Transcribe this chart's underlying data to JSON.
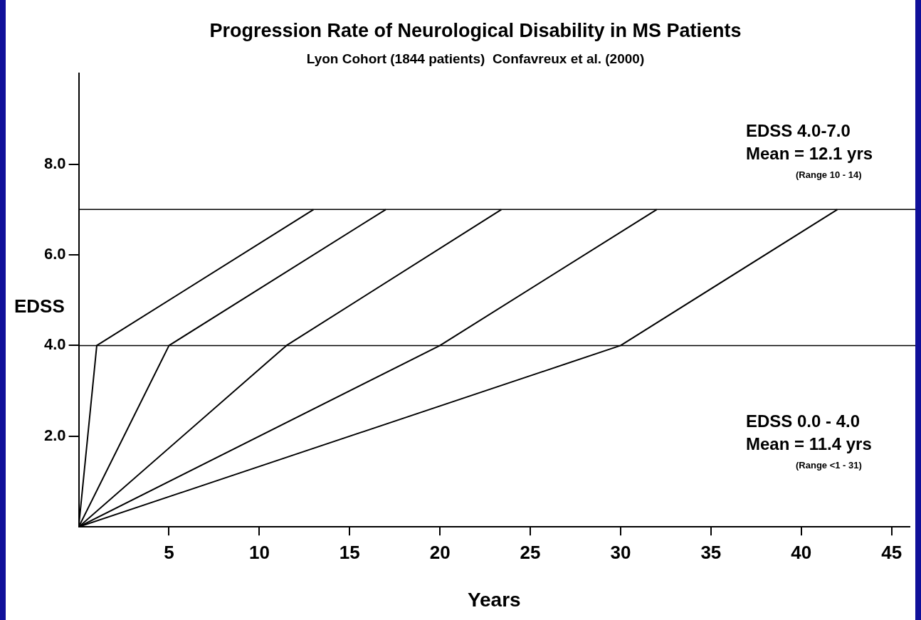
{
  "chart_data": {
    "type": "line",
    "title": "Progression Rate of Neurological Disability in MS Patients",
    "subtitle": "Lyon Cohort (1844 patients)  Confavreux et al. (2000)",
    "xlabel": "Years",
    "ylabel": "EDSS",
    "marker": "none",
    "line_style": "solid",
    "legend": false,
    "xlim": [
      0,
      46
    ],
    "xticks": [
      5,
      10,
      15,
      20,
      25,
      30,
      35,
      40,
      45
    ],
    "ylim": [
      0,
      10
    ],
    "yticks": [
      {
        "value": 2,
        "label": "2.0"
      },
      {
        "value": 4,
        "label": "4.0"
      },
      {
        "value": 6,
        "label": "6.0"
      },
      {
        "value": 8,
        "label": "8.0"
      }
    ],
    "series": [
      {
        "color": "#000000",
        "x": [
          0,
          1,
          13
        ],
        "values": [
          0,
          4,
          7
        ]
      },
      {
        "color": "#000000",
        "x": [
          0,
          5,
          17
        ],
        "values": [
          0,
          4,
          7
        ]
      },
      {
        "color": "#000000",
        "x": [
          0,
          11.5,
          23.4
        ],
        "values": [
          0,
          4,
          7
        ]
      },
      {
        "color": "#000000",
        "x": [
          0,
          20,
          32
        ],
        "values": [
          0,
          4,
          7
        ]
      },
      {
        "color": "#000000",
        "x": [
          0,
          30,
          42
        ],
        "values": [
          0,
          4,
          7
        ]
      }
    ],
    "ref_lines": [
      {
        "axis": "y",
        "value": 4,
        "color": "#000000"
      },
      {
        "axis": "y",
        "value": 7,
        "color": "#000000"
      }
    ],
    "annotations": [
      "EDSS 4.0-7.0",
      "Mean = 12.1 yrs",
      "(Range 10 - 14)",
      "EDSS 0.0 - 4.0",
      "Mean = 11.4 yrs",
      "(Range <1 - 31)"
    ]
  }
}
